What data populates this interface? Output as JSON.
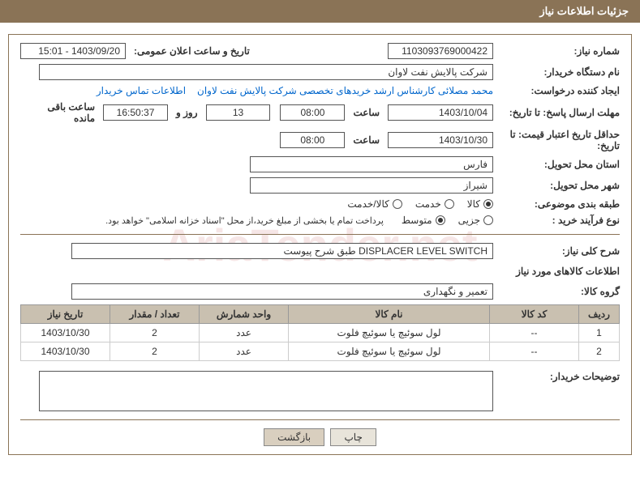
{
  "header": {
    "title": "جزئیات اطلاعات نیاز"
  },
  "need": {
    "number_label": "شماره نیاز:",
    "number": "1103093769000422",
    "announce_label": "تاریخ و ساعت اعلان عمومی:",
    "announce": "1403/09/20 - 15:01",
    "buyer_org_label": "نام دستگاه خریدار:",
    "buyer_org": "شرکت پالایش نفت لاوان",
    "requester_label": "ایجاد کننده درخواست:",
    "requester": "محمد مصلائی کارشناس ارشد خریدهای تخصصی شرکت پالایش نفت لاوان",
    "contact_link": "اطلاعات تماس خریدار",
    "deadline_send_label": "مهلت ارسال پاسخ: تا تاریخ:",
    "deadline_date": "1403/10/04",
    "time_label": "ساعت",
    "deadline_time": "08:00",
    "days_remaining": "13",
    "days_label": "روز و",
    "time_remaining": "16:50:37",
    "remaining_label": "ساعت باقی مانده",
    "validity_label": "حداقل تاریخ اعتبار قیمت: تا تاریخ:",
    "validity_date": "1403/10/30",
    "validity_time": "08:00",
    "province_label": "استان محل تحویل:",
    "province": "فارس",
    "city_label": "شهر محل تحویل:",
    "city": "شیراز",
    "category_label": "طبقه بندی موضوعی:",
    "cat_kala": "کالا",
    "cat_khedmat": "خدمت",
    "cat_kala_khedmat": "کالا/خدمت",
    "process_label": "نوع فرآیند خرید :",
    "proc_jozei": "جزیی",
    "proc_motavaset": "متوسط",
    "payment_note": "پرداخت تمام یا بخشی از مبلغ خرید،از محل \"اسناد خزانه اسلامی\" خواهد بود.",
    "general_desc_label": "شرح کلی نیاز:",
    "general_desc": "DISPLACER LEVEL SWITCH طبق شرح پیوست"
  },
  "goods": {
    "section_title": "اطلاعات کالاهای مورد نیاز",
    "group_label": "گروه کالا:",
    "group": "تعمیر و نگهداری",
    "headers": {
      "row": "ردیف",
      "code": "کد کالا",
      "name": "نام کالا",
      "unit": "واحد شمارش",
      "qty": "تعداد / مقدار",
      "date": "تاریخ نیاز"
    },
    "rows": [
      {
        "n": "1",
        "code": "--",
        "name": "لول سوئیچ یا سوئیچ فلوت",
        "unit": "عدد",
        "qty": "2",
        "date": "1403/10/30"
      },
      {
        "n": "2",
        "code": "--",
        "name": "لول سوئیچ یا سوئیچ فلوت",
        "unit": "عدد",
        "qty": "2",
        "date": "1403/10/30"
      }
    ]
  },
  "buyer_notes": {
    "label": "توضیحات خریدار:"
  },
  "buttons": {
    "print": "چاپ",
    "back": "بازگشت"
  }
}
